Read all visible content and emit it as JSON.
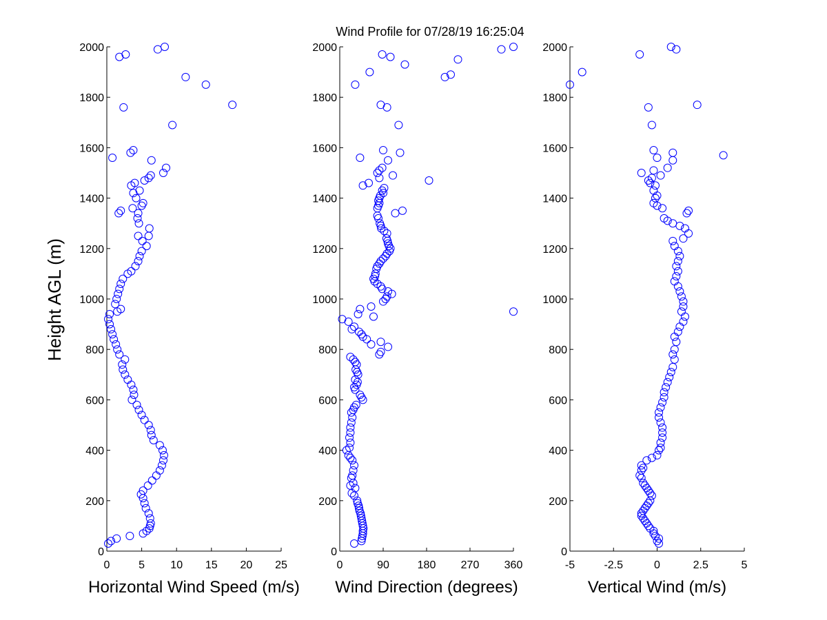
{
  "title": "Wind Profile for  07/28/19 16:25:04",
  "chart_data": [
    {
      "type": "scatter",
      "xlabel": "Horizontal Wind Speed (m/s)",
      "ylabel": "Height AGL (m)",
      "xlim": [
        0,
        25
      ],
      "ylim": [
        0,
        2000
      ],
      "xticks": [
        "0",
        "5",
        "10",
        "15",
        "20",
        "25"
      ],
      "yticks": [
        "0",
        "200",
        "400",
        "600",
        "800",
        "1000",
        "1200",
        "1400",
        "1600",
        "1800",
        "2000"
      ],
      "points": [
        [
          0.2,
          30
        ],
        [
          0.6,
          40
        ],
        [
          1.4,
          50
        ],
        [
          3.3,
          60
        ],
        [
          5.2,
          70
        ],
        [
          5.7,
          80
        ],
        [
          6.1,
          90
        ],
        [
          6.2,
          100
        ],
        [
          6.3,
          110
        ],
        [
          6.2,
          130
        ],
        [
          6.0,
          150
        ],
        [
          5.6,
          170
        ],
        [
          5.4,
          190
        ],
        [
          5.2,
          210
        ],
        [
          4.9,
          225
        ],
        [
          5.2,
          240
        ],
        [
          5.9,
          260
        ],
        [
          6.5,
          280
        ],
        [
          7.1,
          300
        ],
        [
          7.6,
          320
        ],
        [
          7.9,
          340
        ],
        [
          8.1,
          360
        ],
        [
          8.2,
          380
        ],
        [
          8.0,
          400
        ],
        [
          7.6,
          420
        ],
        [
          6.7,
          440
        ],
        [
          6.4,
          460
        ],
        [
          6.3,
          480
        ],
        [
          6.0,
          500
        ],
        [
          5.4,
          520
        ],
        [
          5.0,
          540
        ],
        [
          4.6,
          560
        ],
        [
          4.3,
          580
        ],
        [
          3.6,
          600
        ],
        [
          3.9,
          620
        ],
        [
          3.8,
          640
        ],
        [
          3.5,
          660
        ],
        [
          3.0,
          680
        ],
        [
          2.6,
          700
        ],
        [
          2.3,
          720
        ],
        [
          2.2,
          740
        ],
        [
          2.6,
          760
        ],
        [
          1.8,
          780
        ],
        [
          1.5,
          800
        ],
        [
          1.3,
          820
        ],
        [
          1.0,
          840
        ],
        [
          0.8,
          860
        ],
        [
          0.6,
          880
        ],
        [
          0.4,
          900
        ],
        [
          0.2,
          920
        ],
        [
          0.4,
          940
        ],
        [
          1.5,
          950
        ],
        [
          2.0,
          960
        ],
        [
          1.2,
          980
        ],
        [
          1.4,
          1000
        ],
        [
          1.6,
          1020
        ],
        [
          1.8,
          1040
        ],
        [
          2.0,
          1060
        ],
        [
          2.3,
          1080
        ],
        [
          3.0,
          1100
        ],
        [
          3.5,
          1110
        ],
        [
          4.1,
          1130
        ],
        [
          4.5,
          1150
        ],
        [
          4.7,
          1170
        ],
        [
          5.0,
          1190
        ],
        [
          5.7,
          1210
        ],
        [
          5.1,
          1230
        ],
        [
          6.0,
          1250
        ],
        [
          4.5,
          1250
        ],
        [
          6.1,
          1280
        ],
        [
          4.6,
          1300
        ],
        [
          4.4,
          1320
        ],
        [
          4.5,
          1340
        ],
        [
          1.7,
          1340
        ],
        [
          2.0,
          1350
        ],
        [
          5.0,
          1370
        ],
        [
          3.7,
          1360
        ],
        [
          5.2,
          1380
        ],
        [
          4.2,
          1400
        ],
        [
          3.8,
          1420
        ],
        [
          4.7,
          1430
        ],
        [
          3.5,
          1450
        ],
        [
          4.0,
          1460
        ],
        [
          5.4,
          1470
        ],
        [
          6.0,
          1480
        ],
        [
          6.3,
          1490
        ],
        [
          8.1,
          1500
        ],
        [
          8.5,
          1520
        ],
        [
          6.4,
          1550
        ],
        [
          0.8,
          1560
        ],
        [
          3.4,
          1580
        ],
        [
          3.8,
          1590
        ],
        [
          9.4,
          1690
        ],
        [
          18.0,
          1770
        ],
        [
          2.4,
          1760
        ],
        [
          14.2,
          1850
        ],
        [
          11.3,
          1880
        ],
        [
          1.8,
          1960
        ],
        [
          2.7,
          1970
        ],
        [
          7.3,
          1990
        ],
        [
          8.3,
          2000
        ]
      ]
    },
    {
      "type": "scatter",
      "xlabel": "Wind Direction (degrees)",
      "xlim": [
        0,
        360
      ],
      "ylim": [
        0,
        2000
      ],
      "xticks": [
        "0",
        "90",
        "180",
        "270",
        "360"
      ],
      "yticks": [
        "0",
        "200",
        "400",
        "600",
        "800",
        "1000",
        "1200",
        "1400",
        "1600",
        "1800",
        "2000"
      ],
      "points": [
        [
          30,
          30
        ],
        [
          45,
          40
        ],
        [
          46,
          50
        ],
        [
          47,
          60
        ],
        [
          48,
          70
        ],
        [
          48,
          80
        ],
        [
          49,
          90
        ],
        [
          48,
          100
        ],
        [
          47,
          110
        ],
        [
          46,
          120
        ],
        [
          45,
          130
        ],
        [
          44,
          140
        ],
        [
          43,
          150
        ],
        [
          41,
          160
        ],
        [
          40,
          170
        ],
        [
          39,
          180
        ],
        [
          37,
          190
        ],
        [
          36,
          200
        ],
        [
          30,
          220
        ],
        [
          25,
          230
        ],
        [
          32,
          250
        ],
        [
          22,
          260
        ],
        [
          28,
          270
        ],
        [
          24,
          290
        ],
        [
          26,
          300
        ],
        [
          28,
          320
        ],
        [
          30,
          340
        ],
        [
          26,
          360
        ],
        [
          22,
          370
        ],
        [
          18,
          380
        ],
        [
          14,
          400
        ],
        [
          20,
          410
        ],
        [
          22,
          430
        ],
        [
          20,
          450
        ],
        [
          22,
          470
        ],
        [
          22,
          490
        ],
        [
          24,
          510
        ],
        [
          26,
          530
        ],
        [
          24,
          550
        ],
        [
          28,
          560
        ],
        [
          30,
          570
        ],
        [
          34,
          580
        ],
        [
          48,
          600
        ],
        [
          45,
          610
        ],
        [
          42,
          620
        ],
        [
          32,
          640
        ],
        [
          30,
          650
        ],
        [
          35,
          660
        ],
        [
          37,
          670
        ],
        [
          32,
          680
        ],
        [
          38,
          700
        ],
        [
          36,
          710
        ],
        [
          33,
          720
        ],
        [
          35,
          740
        ],
        [
          32,
          750
        ],
        [
          28,
          760
        ],
        [
          22,
          770
        ],
        [
          82,
          780
        ],
        [
          85,
          790
        ],
        [
          100,
          810
        ],
        [
          65,
          820
        ],
        [
          85,
          830
        ],
        [
          56,
          840
        ],
        [
          48,
          850
        ],
        [
          45,
          860
        ],
        [
          40,
          870
        ],
        [
          25,
          880
        ],
        [
          30,
          890
        ],
        [
          18,
          910
        ],
        [
          5,
          920
        ],
        [
          70,
          930
        ],
        [
          38,
          940
        ],
        [
          42,
          960
        ],
        [
          65,
          970
        ],
        [
          360,
          950
        ],
        [
          90,
          990
        ],
        [
          95,
          1000
        ],
        [
          98,
          1010
        ],
        [
          108,
          1020
        ],
        [
          100,
          1030
        ],
        [
          88,
          1040
        ],
        [
          85,
          1050
        ],
        [
          78,
          1060
        ],
        [
          72,
          1070
        ],
        [
          70,
          1080
        ],
        [
          73,
          1090
        ],
        [
          74,
          1100
        ],
        [
          76,
          1120
        ],
        [
          78,
          1130
        ],
        [
          82,
          1140
        ],
        [
          85,
          1150
        ],
        [
          90,
          1160
        ],
        [
          95,
          1170
        ],
        [
          98,
          1180
        ],
        [
          103,
          1190
        ],
        [
          105,
          1200
        ],
        [
          102,
          1210
        ],
        [
          100,
          1220
        ],
        [
          99,
          1230
        ],
        [
          97,
          1240
        ],
        [
          98,
          1260
        ],
        [
          92,
          1270
        ],
        [
          86,
          1280
        ],
        [
          85,
          1290
        ],
        [
          83,
          1300
        ],
        [
          80,
          1320
        ],
        [
          78,
          1330
        ],
        [
          115,
          1340
        ],
        [
          130,
          1350
        ],
        [
          78,
          1360
        ],
        [
          80,
          1370
        ],
        [
          82,
          1380
        ],
        [
          80,
          1390
        ],
        [
          82,
          1400
        ],
        [
          84,
          1410
        ],
        [
          90,
          1420
        ],
        [
          88,
          1430
        ],
        [
          92,
          1440
        ],
        [
          48,
          1450
        ],
        [
          60,
          1460
        ],
        [
          185,
          1470
        ],
        [
          82,
          1480
        ],
        [
          110,
          1490
        ],
        [
          78,
          1500
        ],
        [
          82,
          1510
        ],
        [
          88,
          1520
        ],
        [
          100,
          1550
        ],
        [
          42,
          1560
        ],
        [
          125,
          1580
        ],
        [
          90,
          1590
        ],
        [
          122,
          1690
        ],
        [
          85,
          1770
        ],
        [
          98,
          1760
        ],
        [
          32,
          1850
        ],
        [
          218,
          1880
        ],
        [
          230,
          1890
        ],
        [
          62,
          1900
        ],
        [
          245,
          1950
        ],
        [
          135,
          1930
        ],
        [
          88,
          1970
        ],
        [
          105,
          1960
        ],
        [
          335,
          1990
        ],
        [
          360,
          2000
        ]
      ]
    },
    {
      "type": "scatter",
      "xlabel": "Vertical Wind (m/s)",
      "xlim": [
        -5,
        5
      ],
      "ylim": [
        0,
        2000
      ],
      "xticks": [
        "-5",
        "-2.5",
        "0",
        "2.5",
        "5"
      ],
      "yticks": [
        "0",
        "200",
        "400",
        "600",
        "800",
        "1000",
        "1200",
        "1400",
        "1600",
        "1800",
        "2000"
      ],
      "points": [
        [
          0.1,
          30
        ],
        [
          0.0,
          40
        ],
        [
          0.1,
          50
        ],
        [
          -0.1,
          60
        ],
        [
          -0.2,
          70
        ],
        [
          -0.2,
          80
        ],
        [
          -0.4,
          90
        ],
        [
          -0.5,
          100
        ],
        [
          -0.6,
          110
        ],
        [
          -0.7,
          120
        ],
        [
          -0.8,
          130
        ],
        [
          -0.9,
          140
        ],
        [
          -0.9,
          150
        ],
        [
          -0.8,
          160
        ],
        [
          -0.7,
          170
        ],
        [
          -0.6,
          180
        ],
        [
          -0.5,
          190
        ],
        [
          -0.4,
          200
        ],
        [
          -0.3,
          220
        ],
        [
          -0.4,
          230
        ],
        [
          -0.5,
          240
        ],
        [
          -0.6,
          250
        ],
        [
          -0.7,
          260
        ],
        [
          -0.8,
          270
        ],
        [
          -0.9,
          290
        ],
        [
          -1.0,
          300
        ],
        [
          -0.9,
          320
        ],
        [
          -0.8,
          330
        ],
        [
          -0.9,
          340
        ],
        [
          -0.6,
          360
        ],
        [
          -0.3,
          370
        ],
        [
          0.0,
          380
        ],
        [
          0.1,
          400
        ],
        [
          0.2,
          410
        ],
        [
          0.2,
          430
        ],
        [
          0.3,
          450
        ],
        [
          0.3,
          470
        ],
        [
          0.3,
          490
        ],
        [
          0.2,
          510
        ],
        [
          0.1,
          530
        ],
        [
          0.1,
          550
        ],
        [
          0.2,
          570
        ],
        [
          0.3,
          590
        ],
        [
          0.4,
          610
        ],
        [
          0.4,
          630
        ],
        [
          0.5,
          650
        ],
        [
          0.6,
          670
        ],
        [
          0.7,
          690
        ],
        [
          0.8,
          710
        ],
        [
          0.9,
          730
        ],
        [
          1.0,
          760
        ],
        [
          0.9,
          780
        ],
        [
          1.0,
          800
        ],
        [
          1.1,
          830
        ],
        [
          1.0,
          850
        ],
        [
          1.2,
          870
        ],
        [
          1.3,
          890
        ],
        [
          1.5,
          910
        ],
        [
          1.6,
          930
        ],
        [
          1.4,
          950
        ],
        [
          1.5,
          970
        ],
        [
          1.5,
          990
        ],
        [
          1.4,
          1010
        ],
        [
          1.3,
          1030
        ],
        [
          1.2,
          1050
        ],
        [
          1.0,
          1070
        ],
        [
          1.1,
          1090
        ],
        [
          1.2,
          1110
        ],
        [
          1.1,
          1130
        ],
        [
          1.2,
          1150
        ],
        [
          1.3,
          1170
        ],
        [
          1.2,
          1190
        ],
        [
          1.0,
          1210
        ],
        [
          0.9,
          1230
        ],
        [
          1.5,
          1240
        ],
        [
          1.8,
          1260
        ],
        [
          1.6,
          1280
        ],
        [
          1.3,
          1290
        ],
        [
          0.9,
          1300
        ],
        [
          0.6,
          1310
        ],
        [
          0.4,
          1320
        ],
        [
          1.7,
          1340
        ],
        [
          1.8,
          1350
        ],
        [
          0.3,
          1360
        ],
        [
          0.0,
          1370
        ],
        [
          -0.2,
          1380
        ],
        [
          -0.1,
          1400
        ],
        [
          0.0,
          1410
        ],
        [
          -0.2,
          1430
        ],
        [
          -0.1,
          1450
        ],
        [
          -0.4,
          1460
        ],
        [
          -0.5,
          1470
        ],
        [
          -0.3,
          1480
        ],
        [
          -0.9,
          1500
        ],
        [
          0.2,
          1490
        ],
        [
          -0.2,
          1510
        ],
        [
          0.6,
          1520
        ],
        [
          0.0,
          1560
        ],
        [
          -0.2,
          1590
        ],
        [
          0.9,
          1580
        ],
        [
          0.9,
          1550
        ],
        [
          3.8,
          1570
        ],
        [
          -0.5,
          1760
        ],
        [
          -0.3,
          1690
        ],
        [
          2.3,
          1770
        ],
        [
          -4.3,
          1900
        ],
        [
          -5.0,
          1850
        ],
        [
          -1.0,
          1970
        ],
        [
          0.8,
          2000
        ],
        [
          1.1,
          1990
        ]
      ]
    }
  ]
}
